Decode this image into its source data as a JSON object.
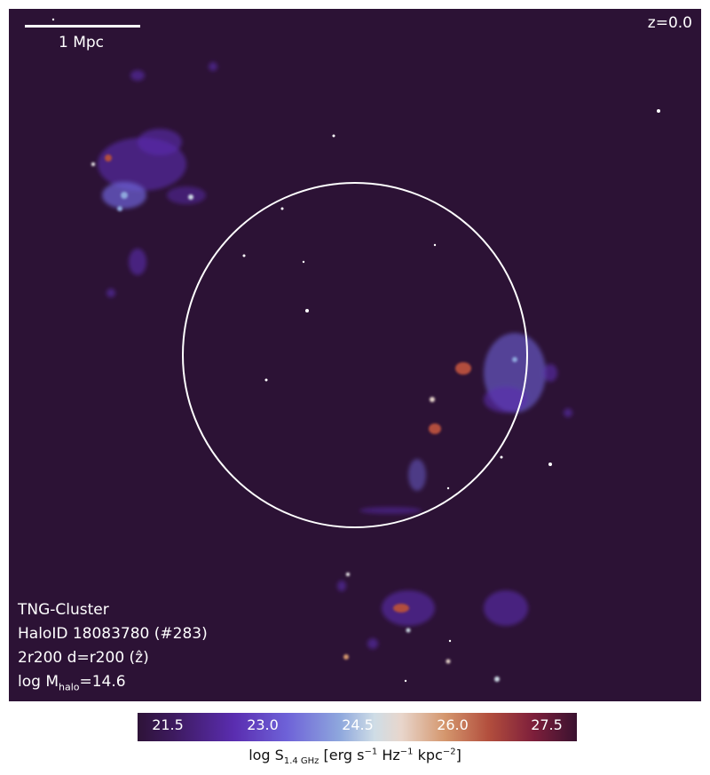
{
  "panel": {
    "scale_bar_label": "1 Mpc",
    "redshift_label": "z=0.0"
  },
  "info": {
    "simulation": "TNG-Cluster",
    "halo_id": "HaloID 18083780 (#283)",
    "projection": "2r200 d=r200 (ẑ)",
    "mass_prefix": "log M",
    "mass_sub": "halo",
    "mass_value": "=14.6"
  },
  "colorbar": {
    "ticks": [
      "21.5",
      "23.0",
      "24.5",
      "26.0",
      "27.5"
    ],
    "label_prefix": "log S",
    "label_sub": "1.4 GHz",
    "label_units_a": " [erg s",
    "sup1": "−1",
    "label_units_b": " Hz",
    "sup2": "−1",
    "label_units_c": " kpc",
    "sup3": "−2",
    "label_units_d": "]"
  },
  "colors": {
    "background": "#2c1235",
    "circle": "#ffffff"
  }
}
